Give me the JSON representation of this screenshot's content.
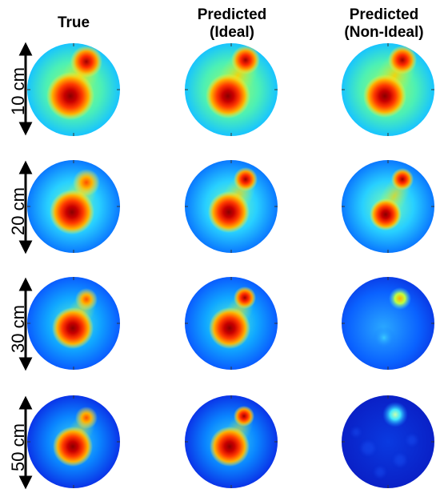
{
  "columns": [
    {
      "line1": "True",
      "line2": ""
    },
    {
      "line1": "Predicted",
      "line2": "(Ideal)"
    },
    {
      "line1": "Predicted",
      "line2": "(Non-Ideal)"
    }
  ],
  "rows": [
    {
      "label": "10 cm"
    },
    {
      "label": "20 cm"
    },
    {
      "label": "30 cm"
    },
    {
      "label": "50 cm"
    }
  ],
  "colormap": "jet"
}
